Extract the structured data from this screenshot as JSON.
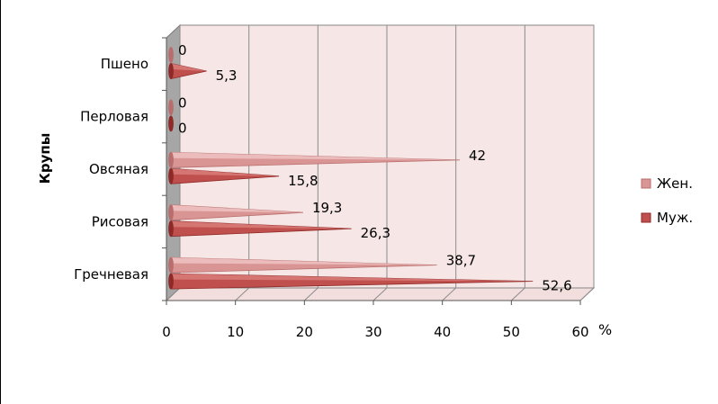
{
  "chart_data": {
    "type": "bar",
    "orientation": "horizontal",
    "style": "3d-cone",
    "categories": [
      "Пшено",
      "Перловая",
      "Овсяная",
      "Рисовая",
      "Гречневая"
    ],
    "series": [
      {
        "name": "Жен.",
        "values": [
          0,
          0,
          42,
          19.3,
          38.7
        ],
        "color": "#d99594",
        "labels": [
          "0",
          "0",
          "42",
          "19,3",
          "38,7"
        ]
      },
      {
        "name": "Муж.",
        "values": [
          5.3,
          0,
          15.8,
          26.3,
          52.6
        ],
        "color": "#c0504d",
        "labels": [
          "5,3",
          "0",
          "15,8",
          "26,3",
          "52,6"
        ]
      }
    ],
    "ylabel": "Крупы",
    "xunit": "%",
    "xlim": [
      0,
      60
    ],
    "xticks": [
      0,
      10,
      20,
      30,
      40,
      50,
      60
    ],
    "xtick_labels": [
      "0",
      "10",
      "20",
      "30",
      "40",
      "50",
      "60"
    ],
    "grid": true,
    "wall_color": "#f6e6e6",
    "legend_position": "right"
  }
}
